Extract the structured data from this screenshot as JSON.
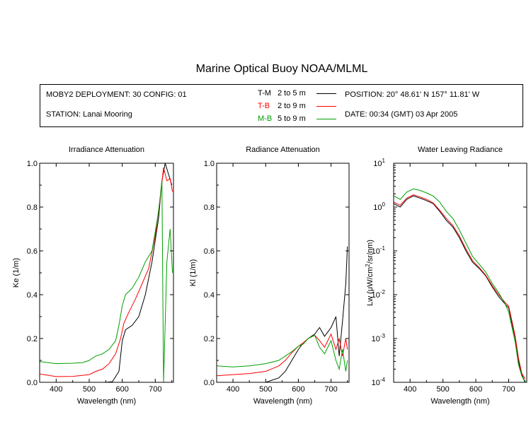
{
  "title": "Marine Optical Buoy NOAA/MLML",
  "info": {
    "deployment": "MOBY2 DEPLOYMENT: 30 CONFIG: 01",
    "station": "STATION: Lanai Mooring",
    "position": "POSITION: 20° 48.61' N   157° 11.81' W",
    "date": "DATE: 00:34 (GMT) 03 Apr 2005"
  },
  "legend": [
    {
      "code": "T-M",
      "range": "2 to 5  m",
      "color": "#000000"
    },
    {
      "code": "T-B",
      "range": "2 to 9  m",
      "color": "#ff0000"
    },
    {
      "code": "M-B",
      "range": "5 to 9  m",
      "color": "#00a000"
    }
  ],
  "chart_data": [
    {
      "type": "line",
      "title": "Irradiance Attenuation",
      "xlabel": "Wavelength (nm)",
      "ylabel": "Ke  (1/m)",
      "xlim": [
        350,
        755
      ],
      "ylim": [
        0,
        1.0
      ],
      "xticks": [
        400,
        500,
        600,
        700
      ],
      "xticklabels": [
        "400",
        "500",
        "600",
        "700"
      ],
      "yticks": [
        0,
        0.2,
        0.4,
        0.6,
        0.8,
        1.0
      ],
      "yticklabels": [
        "0.0",
        "0.2",
        "0.4",
        "0.6",
        "0.8",
        "1.0"
      ],
      "series": [
        {
          "name": "T-M",
          "color": "#000000",
          "x": [
            350,
            400,
            450,
            500,
            550,
            570,
            590,
            600,
            610,
            630,
            650,
            670,
            690,
            710,
            720,
            730,
            740,
            750
          ],
          "y": [
            0.0,
            0.0,
            0.0,
            0.0,
            0.0,
            0.003,
            0.05,
            0.19,
            0.24,
            0.26,
            0.3,
            0.4,
            0.55,
            0.75,
            0.92,
            1.0,
            0.95,
            0.9
          ]
        },
        {
          "name": "T-B",
          "color": "#ff0000",
          "x": [
            350,
            400,
            450,
            480,
            500,
            520,
            540,
            560,
            580,
            595,
            605,
            620,
            640,
            660,
            680,
            700,
            715,
            725,
            735,
            745,
            752
          ],
          "y": [
            0.038,
            0.026,
            0.027,
            0.032,
            0.035,
            0.05,
            0.06,
            0.085,
            0.13,
            0.2,
            0.27,
            0.32,
            0.38,
            0.45,
            0.52,
            0.67,
            0.84,
            0.98,
            0.92,
            0.93,
            0.87
          ]
        },
        {
          "name": "M-B",
          "color": "#00a000",
          "x": [
            350,
            400,
            450,
            480,
            500,
            520,
            540,
            560,
            580,
            590,
            600,
            610,
            630,
            650,
            670,
            690,
            710,
            720,
            725,
            735,
            745,
            752
          ],
          "y": [
            0.095,
            0.085,
            0.087,
            0.09,
            0.1,
            0.12,
            0.13,
            0.15,
            0.19,
            0.26,
            0.35,
            0.4,
            0.43,
            0.48,
            0.55,
            0.6,
            0.78,
            0.92,
            0.0,
            0.55,
            0.7,
            0.5
          ]
        }
      ]
    },
    {
      "type": "line",
      "title": "Radiance Attenuation",
      "xlabel": "Wavelength (nm)",
      "ylabel": "Kl  (1/m)",
      "xlim": [
        350,
        755
      ],
      "ylim": [
        0,
        1.0
      ],
      "xticks": [
        400,
        500,
        600,
        700
      ],
      "xticklabels": [
        "400",
        "500",
        "600",
        "700"
      ],
      "yticks": [
        0,
        0.2,
        0.4,
        0.6,
        0.8,
        1.0
      ],
      "yticklabels": [
        "0.0",
        "0.2",
        "0.4",
        "0.6",
        "0.8",
        "1.0"
      ],
      "series": [
        {
          "name": "T-M",
          "color": "#000000",
          "x": [
            350,
            400,
            450,
            500,
            540,
            560,
            580,
            600,
            615,
            630,
            650,
            665,
            680,
            700,
            715,
            725,
            735,
            745,
            750
          ],
          "y": [
            0.0,
            0.0,
            0.0,
            0.0,
            0.02,
            0.05,
            0.1,
            0.15,
            0.18,
            0.2,
            0.22,
            0.25,
            0.21,
            0.25,
            0.3,
            0.12,
            0.28,
            0.45,
            0.62
          ]
        },
        {
          "name": "T-B",
          "color": "#ff0000",
          "x": [
            350,
            400,
            450,
            500,
            540,
            560,
            580,
            600,
            615,
            630,
            650,
            665,
            680,
            700,
            715,
            725,
            735,
            745,
            750
          ],
          "y": [
            0.03,
            0.035,
            0.04,
            0.05,
            0.075,
            0.1,
            0.135,
            0.165,
            0.18,
            0.2,
            0.215,
            0.19,
            0.16,
            0.22,
            0.15,
            0.2,
            0.12,
            0.2,
            0.15
          ]
        },
        {
          "name": "M-B",
          "color": "#00a000",
          "x": [
            350,
            400,
            450,
            500,
            540,
            560,
            580,
            600,
            615,
            630,
            650,
            665,
            680,
            700,
            715,
            725,
            735,
            745,
            750
          ],
          "y": [
            0.075,
            0.07,
            0.075,
            0.085,
            0.1,
            0.12,
            0.14,
            0.165,
            0.175,
            0.2,
            0.215,
            0.16,
            0.13,
            0.19,
            0.1,
            0.06,
            0.15,
            0.05,
            0.1
          ]
        }
      ]
    },
    {
      "type": "line",
      "title": "Water Leaving Radiance",
      "xlabel": "Wavelength (nm)",
      "ylabel": "Lw  (μW/cm²/sr/nm)",
      "yscale": "log",
      "xlim": [
        350,
        755
      ],
      "ylim": [
        0.0001,
        10
      ],
      "xticks": [
        400,
        500,
        600,
        700
      ],
      "xticklabels": [
        "400",
        "500",
        "600",
        "700"
      ],
      "yticks": [
        0.0001,
        0.001,
        0.01,
        0.1,
        1,
        10
      ],
      "ytick_exponents": [
        "-4",
        "-3",
        "-2",
        "-1",
        "0",
        "1"
      ],
      "series": [
        {
          "name": "T-M",
          "color": "#000000",
          "x": [
            350,
            370,
            390,
            410,
            430,
            450,
            470,
            490,
            510,
            530,
            550,
            570,
            590,
            610,
            630,
            650,
            670,
            690,
            700,
            710,
            720,
            730,
            740,
            750
          ],
          "y": [
            1.2,
            1.0,
            1.5,
            1.8,
            1.6,
            1.4,
            1.2,
            0.8,
            0.5,
            0.35,
            0.2,
            0.1,
            0.055,
            0.04,
            0.027,
            0.015,
            0.009,
            0.006,
            0.005,
            0.0022,
            0.001,
            0.0003,
            0.00015,
            0.0001
          ]
        },
        {
          "name": "T-B",
          "color": "#ff0000",
          "x": [
            350,
            370,
            390,
            410,
            430,
            450,
            470,
            490,
            510,
            530,
            550,
            570,
            590,
            610,
            630,
            650,
            670,
            690,
            700,
            710,
            720,
            730,
            740,
            750
          ],
          "y": [
            1.3,
            1.1,
            1.6,
            1.9,
            1.7,
            1.5,
            1.25,
            0.85,
            0.55,
            0.38,
            0.22,
            0.11,
            0.06,
            0.042,
            0.028,
            0.016,
            0.01,
            0.0065,
            0.0055,
            0.0025,
            0.0011,
            0.00035,
            0.00016,
            0.00012
          ]
        },
        {
          "name": "M-B",
          "color": "#00a000",
          "x": [
            350,
            370,
            390,
            410,
            430,
            450,
            470,
            490,
            510,
            530,
            550,
            570,
            590,
            610,
            630,
            650,
            670,
            690,
            700,
            710,
            720,
            730,
            740,
            750
          ],
          "y": [
            1.8,
            1.5,
            2.2,
            2.6,
            2.4,
            2.1,
            1.8,
            1.3,
            0.8,
            0.55,
            0.3,
            0.15,
            0.075,
            0.05,
            0.033,
            0.018,
            0.011,
            0.006,
            0.004,
            0.0018,
            0.0008,
            0.00025,
            0.00014,
            0.0001
          ]
        }
      ]
    }
  ]
}
